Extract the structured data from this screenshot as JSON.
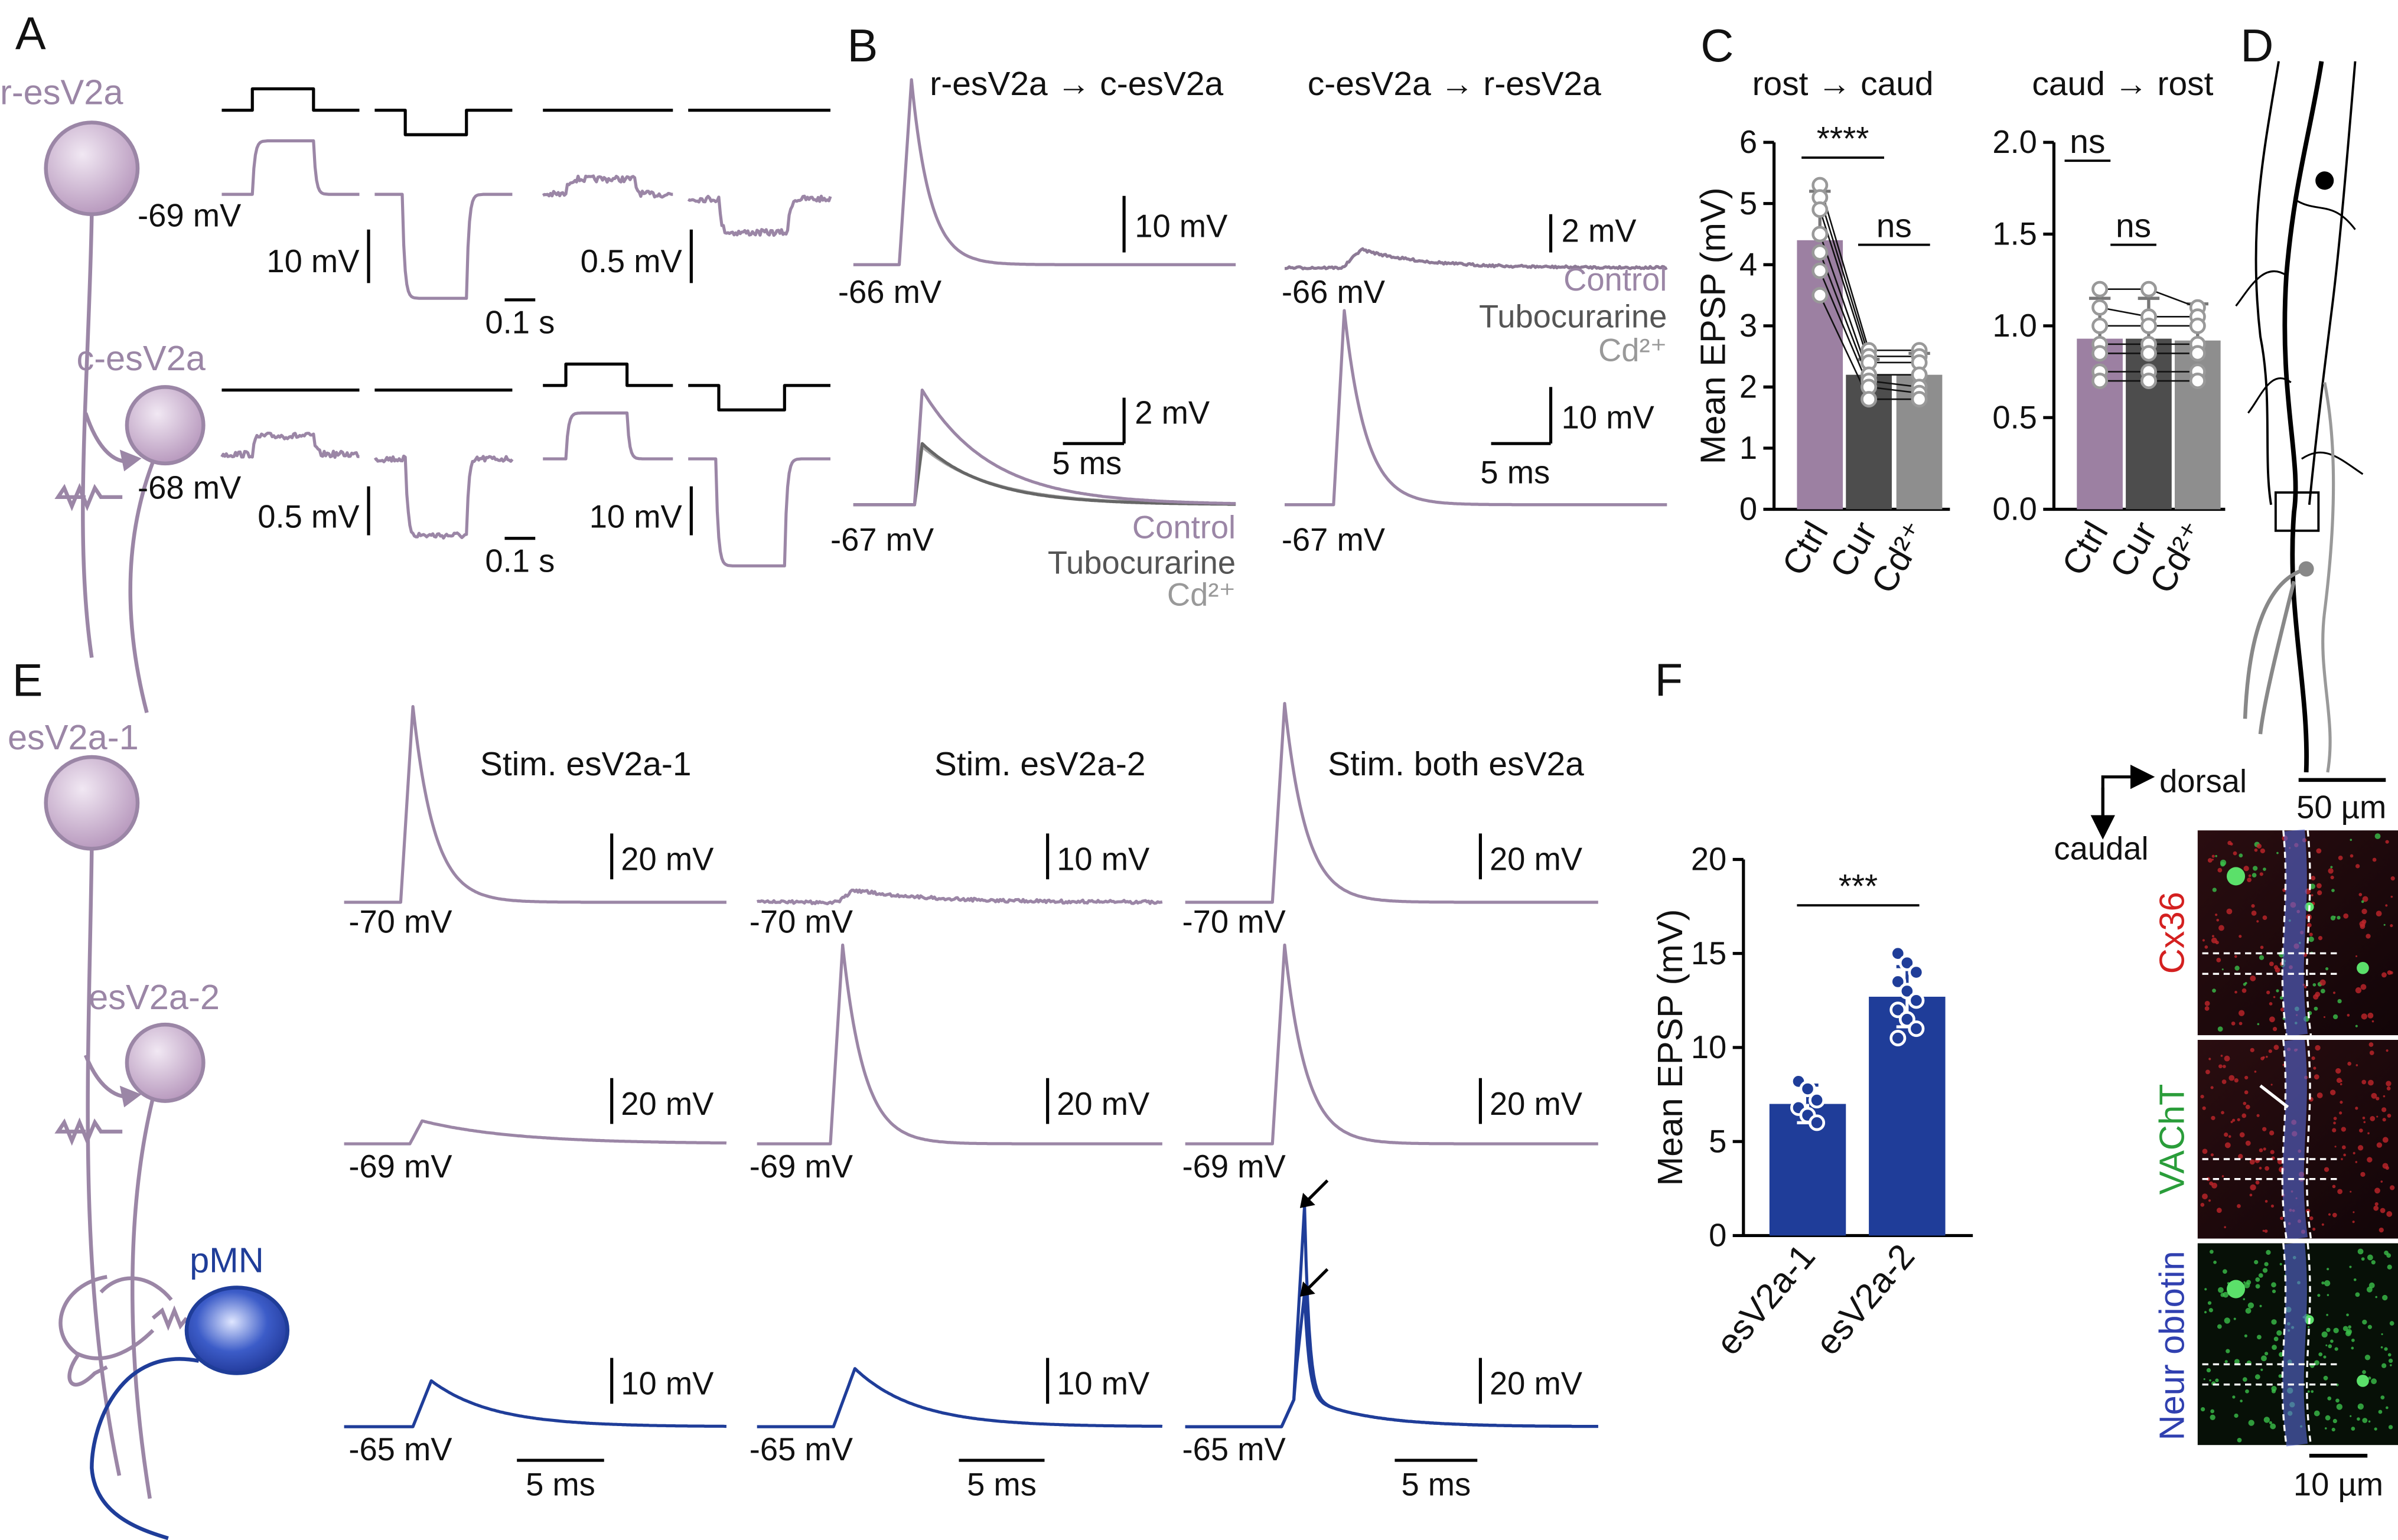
{
  "panel_labels": [
    "A",
    "B",
    "C",
    "D",
    "E",
    "F"
  ],
  "panel_a": {
    "cells": [
      "r-esV2a",
      "c-esV2a"
    ],
    "potentials": [
      "-69 mV",
      "-68 mV"
    ],
    "scale_labels": [
      "10 mV",
      "0.5 mV",
      "0.1 s",
      "0.5 mV",
      "10 mV",
      "0.1 s"
    ]
  },
  "panel_b": {
    "titles": [
      "r-esV2a → c-esV2a",
      "c-esV2a → r-esV2a"
    ],
    "potentials": [
      "-66 mV",
      "-66 mV",
      "-67 mV",
      "-67 mV"
    ],
    "scale_labels": [
      "10 mV",
      "2 mV",
      "2 mV",
      "5 ms",
      "10 mV",
      "5 ms"
    ],
    "legend": [
      "Control",
      "Tubocurarine",
      "Cd²⁺"
    ]
  },
  "panel_d": {
    "axes": [
      "dorsal",
      "caudal"
    ],
    "scale_labels": [
      "50 µm",
      "10 µm"
    ],
    "channels": [
      "Cx36",
      "VAChT",
      "Neur obiotin"
    ]
  },
  "panel_e": {
    "cells": [
      "esV2a-1",
      "esV2a-2",
      "pMN"
    ],
    "titles": [
      "Stim. esV2a-1",
      "Stim. esV2a-2",
      "Stim. both esV2a"
    ],
    "potentials": [
      "-70 mV",
      "-70 mV",
      "-70 mV",
      "-69 mV",
      "-69 mV",
      "-69 mV",
      "-65 mV",
      "-65 mV",
      "-65 mV"
    ],
    "scale_labels": [
      "20 mV",
      "10 mV",
      "20 mV",
      "20 mV",
      "20 mV",
      "20 mV",
      "10 mV",
      "10 mV",
      "20 mV"
    ],
    "time_labels": [
      "5 ms",
      "5 ms",
      "5 ms"
    ]
  },
  "chart_data": [
    {
      "type": "bar",
      "title": "rost → caud",
      "ylabel": "Mean EPSP (mV)",
      "categories": [
        "Ctrl",
        "Cur",
        "Cd²⁺"
      ],
      "values": [
        4.4,
        2.2,
        2.2
      ],
      "errors": [
        0.8,
        0.25,
        0.35
      ],
      "colors": [
        "#9c80a2",
        "#4d4d4d",
        "#8e8e8e"
      ],
      "points": [
        [
          5.3,
          5.1,
          4.9,
          4.5,
          4.2,
          3.9,
          3.5
        ],
        [
          2.6,
          2.5,
          2.4,
          2.2,
          2.1,
          2.0,
          1.8
        ],
        [
          2.6,
          2.5,
          2.4,
          2.2,
          2.0,
          1.9,
          1.8
        ]
      ],
      "annotations": [
        "****",
        "ns"
      ],
      "ylim": [
        0,
        6
      ],
      "yticks": [
        0,
        1,
        2,
        3,
        4,
        5,
        6
      ]
    },
    {
      "type": "bar",
      "title": "caud → rost",
      "categories": [
        "Ctrl",
        "Cur",
        "Cd²⁺"
      ],
      "values": [
        0.93,
        0.93,
        0.92
      ],
      "errors": [
        0.22,
        0.22,
        0.2
      ],
      "colors": [
        "#9c80a2",
        "#4d4d4d",
        "#8e8e8e"
      ],
      "points": [
        [
          1.2,
          1.1,
          1.0,
          0.9,
          0.85,
          0.75,
          0.7
        ],
        [
          1.2,
          1.05,
          1.0,
          0.9,
          0.85,
          0.75,
          0.7
        ],
        [
          1.1,
          1.05,
          1.0,
          0.9,
          0.85,
          0.75,
          0.7
        ]
      ],
      "annotations": [
        "ns",
        "ns"
      ],
      "ylim": [
        0,
        2
      ],
      "yticks": [
        {
          "value": 0,
          "label": "0.0"
        },
        {
          "value": 0.5,
          "label": "0.5"
        },
        {
          "value": 1,
          "label": "1.0"
        },
        {
          "value": 1.5,
          "label": "1.5"
        },
        {
          "value": 2,
          "label": "2.0"
        }
      ]
    },
    {
      "type": "bar",
      "ylabel": "Mean EPSP (mV)",
      "categories": [
        "esV2a-1",
        "esV2a-2"
      ],
      "values": [
        7.0,
        12.7
      ],
      "errors": [
        1.0,
        1.6
      ],
      "colors": [
        "#1f3d99",
        "#1f3d99"
      ],
      "points": [
        [
          8.2,
          7.8,
          7.2,
          6.8,
          6.4,
          6.0
        ],
        [
          15,
          14.5,
          14,
          13.5,
          13,
          12.5,
          12,
          11.5,
          11,
          10.5
        ]
      ],
      "annotations": [
        "***"
      ],
      "ylim": [
        0,
        20
      ],
      "yticks": [
        0,
        5,
        10,
        15,
        20
      ]
    }
  ]
}
